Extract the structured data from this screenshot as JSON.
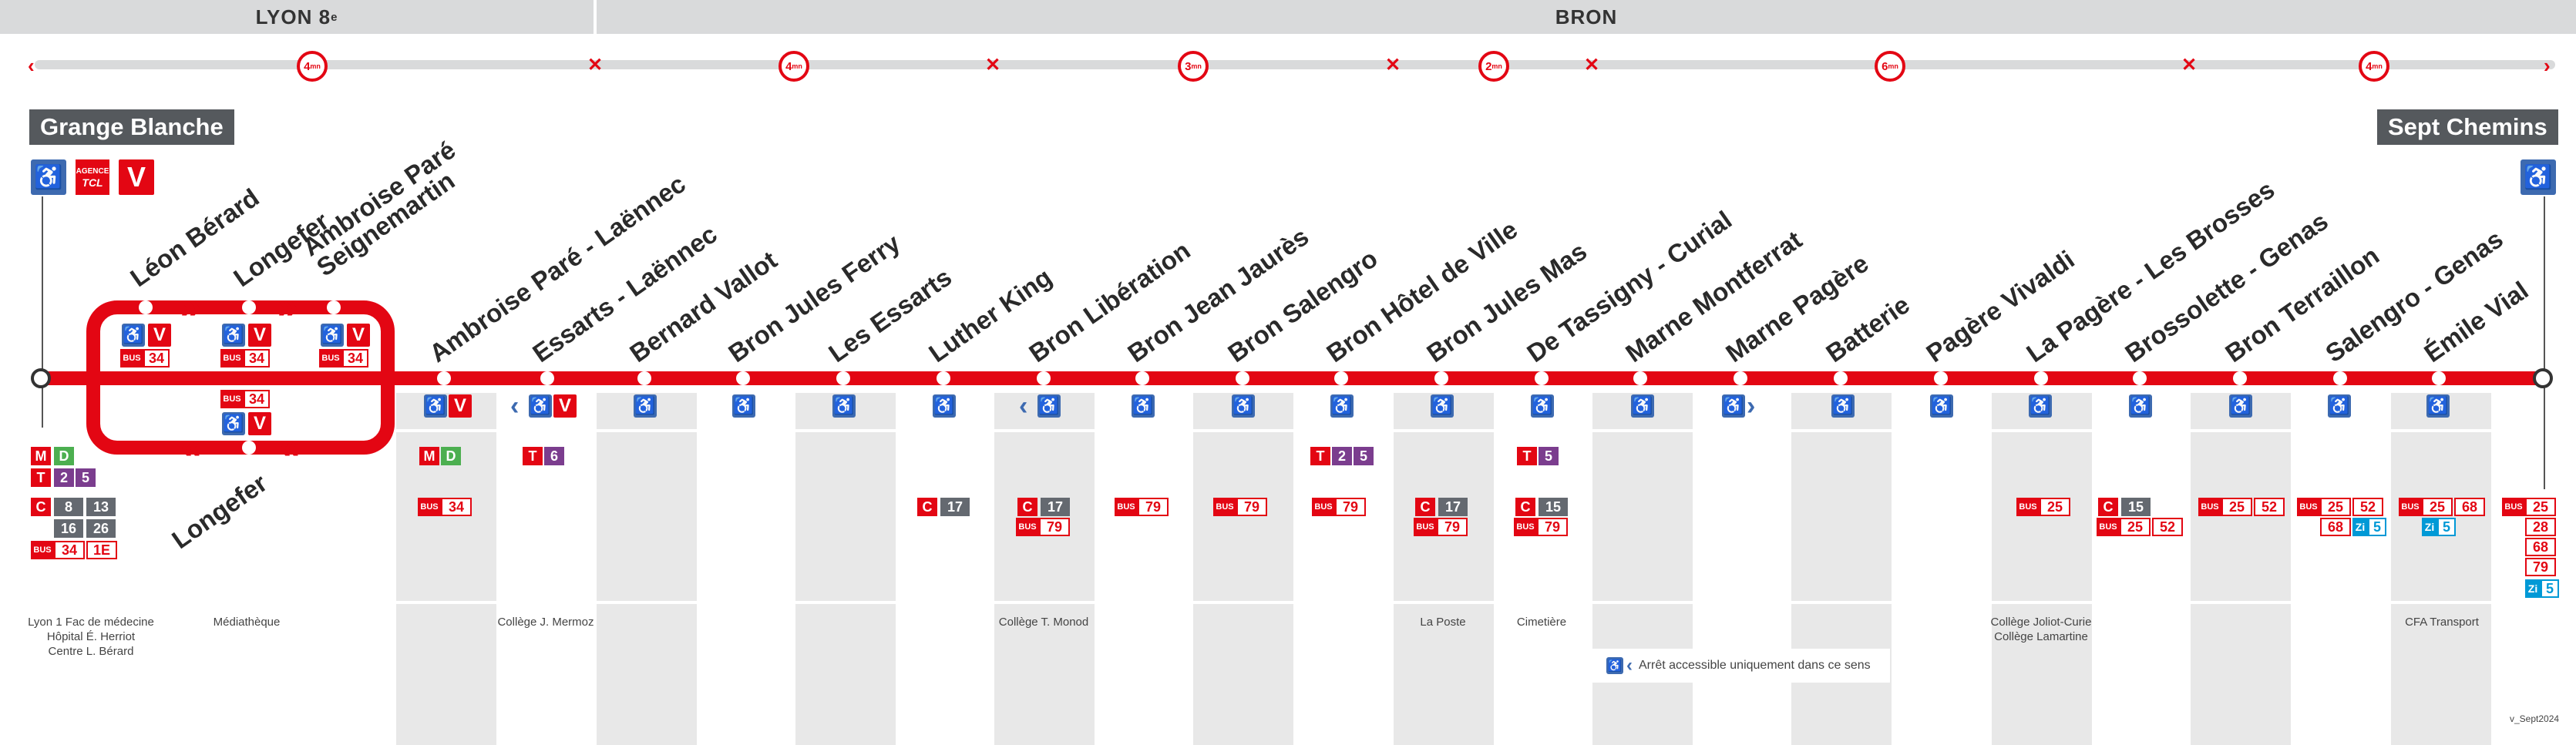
{
  "zones": [
    {
      "name": "LYON 8",
      "sup": "e"
    },
    {
      "name": "BRON",
      "sup": ""
    }
  ],
  "times": [
    {
      "value": "4",
      "unit": "mn"
    },
    {
      "value": "4",
      "unit": "mn"
    },
    {
      "value": "3",
      "unit": "mn"
    },
    {
      "value": "2",
      "unit": "mn"
    },
    {
      "value": "6",
      "unit": "mn"
    },
    {
      "value": "4",
      "unit": "mn"
    }
  ],
  "terminus_start": "Grange Blanche",
  "terminus_end": "Sept Chemins",
  "agence_label": "AGENCE",
  "tcl_label": "TCL",
  "v_label": "V",
  "loop": {
    "upper": [
      "Léon Bérard",
      "Longefer",
      "Ambroise Paré\nSeignemartin"
    ],
    "lower": "Longefer",
    "bus": "34",
    "bus_tag": "BUS"
  },
  "stations": [
    {
      "name": "Ambroise Paré - Laënnec"
    },
    {
      "name": "Essarts - Laënnec"
    },
    {
      "name": "Bernard Vallot"
    },
    {
      "name": "Bron Jules Ferry"
    },
    {
      "name": "Les Essarts"
    },
    {
      "name": "Luther King"
    },
    {
      "name": "Bron Libération"
    },
    {
      "name": "Bron Jean Jaurès"
    },
    {
      "name": "Bron Salengro"
    },
    {
      "name": "Bron Hôtel de Ville"
    },
    {
      "name": "Bron Jules Mas"
    },
    {
      "name": "De Tassigny - Curial"
    },
    {
      "name": "Marne Montferrat"
    },
    {
      "name": "Marne Pagère"
    },
    {
      "name": "Batterie"
    },
    {
      "name": "Pagère Vivaldi"
    },
    {
      "name": "La Pagère - Les Brosses"
    },
    {
      "name": "Brossolette - Genas"
    },
    {
      "name": "Bron Terraillon"
    },
    {
      "name": "Salengro - Genas"
    },
    {
      "name": "Émile Vial"
    }
  ],
  "connections_start": {
    "metro": [
      "M",
      "D"
    ],
    "tram": [
      "T",
      "2",
      "5"
    ],
    "c": [
      "C",
      "8",
      "13",
      "16",
      "26"
    ],
    "bus": [
      "34",
      "1E"
    ]
  },
  "conn": {
    "c17": "17",
    "c15": "15",
    "b34": "34",
    "b79": "79",
    "b25": "25",
    "b52": "52",
    "b68": "68",
    "b28": "28",
    "zi5": "5",
    "m": "M",
    "d": "D",
    "t": "T",
    "t2": "2",
    "t5": "5",
    "t6": "6",
    "c": "C",
    "zi": "Zi"
  },
  "poi": {
    "start": "Lyon 1 Fac de médecine\nHôpital É. Herriot\nCentre L. Bérard",
    "mediatheque": "Médiathèque",
    "mermoz": "Collège J. Mermoz",
    "monod": "Collège T. Monod",
    "poste": "La Poste",
    "cimetiere": "Cimetière",
    "curie": "Collège Joliot-Curie\nCollège Lamartine",
    "cfa": "CFA Transport"
  },
  "note": "Arrêt accessible uniquement dans ce sens",
  "version": "v_Sept2024"
}
